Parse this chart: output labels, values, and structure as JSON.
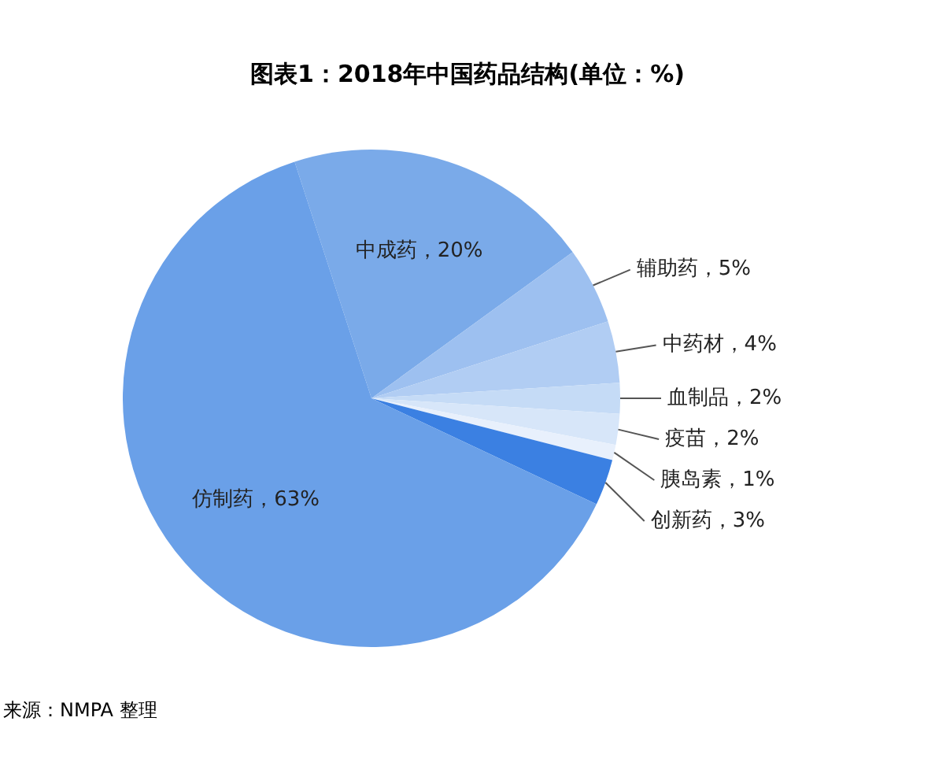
{
  "chart_data": {
    "type": "pie",
    "title": "图表1：2018年中国药品结构(单位：%)",
    "categories": [
      "中成药",
      "辅助药",
      "中药材",
      "血制品",
      "疫苗",
      "胰岛素",
      "创新药",
      "仿制药"
    ],
    "values": [
      20,
      5,
      4,
      2,
      2,
      1,
      3,
      63
    ],
    "value_labels": [
      "20%",
      "5%",
      "4%",
      "2%",
      "2%",
      "1%",
      "3%",
      "63%"
    ],
    "colors": [
      "#7aaae9",
      "#9dc0f0",
      "#b1cdf3",
      "#c5dbf6",
      "#d7e6f9",
      "#e8f0fc",
      "#3b80e2",
      "#6aa0e8"
    ],
    "legend": false,
    "annotations": [
      "来源：NMPA 整理"
    ]
  }
}
